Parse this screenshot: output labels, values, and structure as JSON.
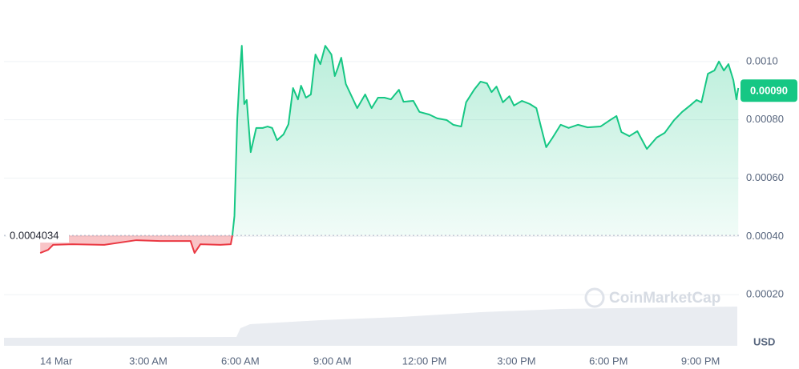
{
  "chart_data": {
    "type": "line",
    "x": [
      -0.52,
      -0.26,
      -0.1,
      0.52,
      1.57,
      2.61,
      3.39,
      4.38,
      4.51,
      4.7,
      5.35,
      5.69,
      5.74,
      5.81,
      5.9,
      5.97,
      6.05,
      6.13,
      6.21,
      6.34,
      6.52,
      6.73,
      6.89,
      7.04,
      7.2,
      7.41,
      7.57,
      7.72,
      7.88,
      7.98,
      8.14,
      8.3,
      8.45,
      8.61,
      8.77,
      8.97,
      9.08,
      9.18,
      9.29,
      9.44,
      9.65,
      9.81,
      10.07,
      10.28,
      10.49,
      10.7,
      10.91,
      11.17,
      11.32,
      11.64,
      11.84,
      12.16,
      12.42,
      12.73,
      12.94,
      13.2,
      13.36,
      13.62,
      13.83,
      14.04,
      14.19,
      14.35,
      14.56,
      14.77,
      14.92,
      15.18,
      15.44,
      15.65,
      15.81,
      15.97,
      16.18,
      16.44,
      16.7,
      17.01,
      17.32,
      17.74,
      18.05,
      18.26,
      18.42,
      18.68,
      18.94,
      19.25,
      19.57,
      19.83,
      20.14,
      20.4,
      20.66,
      20.87,
      21.03,
      21.24,
      21.45,
      21.6,
      21.76,
      21.91,
      22.07,
      22.17,
      22.23
    ],
    "series": [
      {
        "color": "#16c784",
        "color_below": "#ea3943",
        "values": [
          0.000343,
          0.000354,
          0.000371,
          0.000373,
          0.000371,
          0.000387,
          0.000384,
          0.000384,
          0.000343,
          0.000373,
          0.000371,
          0.000373,
          0.000401,
          0.00047,
          0.000799,
          0.000936,
          0.001054,
          0.000854,
          0.000868,
          0.000689,
          0.000772,
          0.000772,
          0.000777,
          0.000772,
          0.00073,
          0.00075,
          0.000785,
          0.000909,
          0.00087,
          0.000917,
          0.000876,
          0.000887,
          0.001024,
          0.000991,
          0.001054,
          0.001024,
          0.00095,
          0.000978,
          0.001013,
          0.000923,
          0.000876,
          0.00084,
          0.000887,
          0.00084,
          0.000876,
          0.000876,
          0.00087,
          0.000903,
          0.000862,
          0.000865,
          0.000827,
          0.000818,
          0.000805,
          0.000799,
          0.000783,
          0.000777,
          0.00086,
          0.000903,
          0.000931,
          0.000925,
          0.000895,
          0.000914,
          0.00086,
          0.000881,
          0.000849,
          0.000865,
          0.000854,
          0.00084,
          0.000772,
          0.000706,
          0.000739,
          0.000783,
          0.000772,
          0.000783,
          0.000774,
          0.000777,
          0.000799,
          0.000813,
          0.000758,
          0.000744,
          0.000761,
          0.0007,
          0.000739,
          0.000755,
          0.000799,
          0.000827,
          0.000849,
          0.000868,
          0.00086,
          0.000958,
          0.000969,
          0.001,
          0.000969,
          0.000991,
          0.000936,
          0.00087,
          0.000909
        ]
      }
    ],
    "baseline": 0.0004034,
    "last_price": {
      "value": 0.0009,
      "label": "0.00090"
    },
    "xlim": [
      -1.7,
      22.25
    ],
    "xticks": [
      {
        "value": 0,
        "label": "14 Mar"
      },
      {
        "value": 3,
        "label": "3:00 AM"
      },
      {
        "value": 6,
        "label": "6:00 AM"
      },
      {
        "value": 9,
        "label": "9:00 AM"
      },
      {
        "value": 12,
        "label": "12:00 PM"
      },
      {
        "value": 15,
        "label": "3:00 PM"
      },
      {
        "value": 18,
        "label": "6:00 PM"
      },
      {
        "value": 21,
        "label": "9:00 PM"
      }
    ],
    "ylim": [
      0,
      0.0012
    ],
    "yticks": [
      {
        "value": 0.0002,
        "label": "0.00020"
      },
      {
        "value": 0.0004,
        "label": "0.00040"
      },
      {
        "value": 0.0006,
        "label": "0.00060"
      },
      {
        "value": 0.0008,
        "label": "0.00080"
      },
      {
        "value": 0.001,
        "label": "0.0010"
      }
    ],
    "y_unit": "USD",
    "watermark": "CoinMarketCap",
    "grid": true
  }
}
